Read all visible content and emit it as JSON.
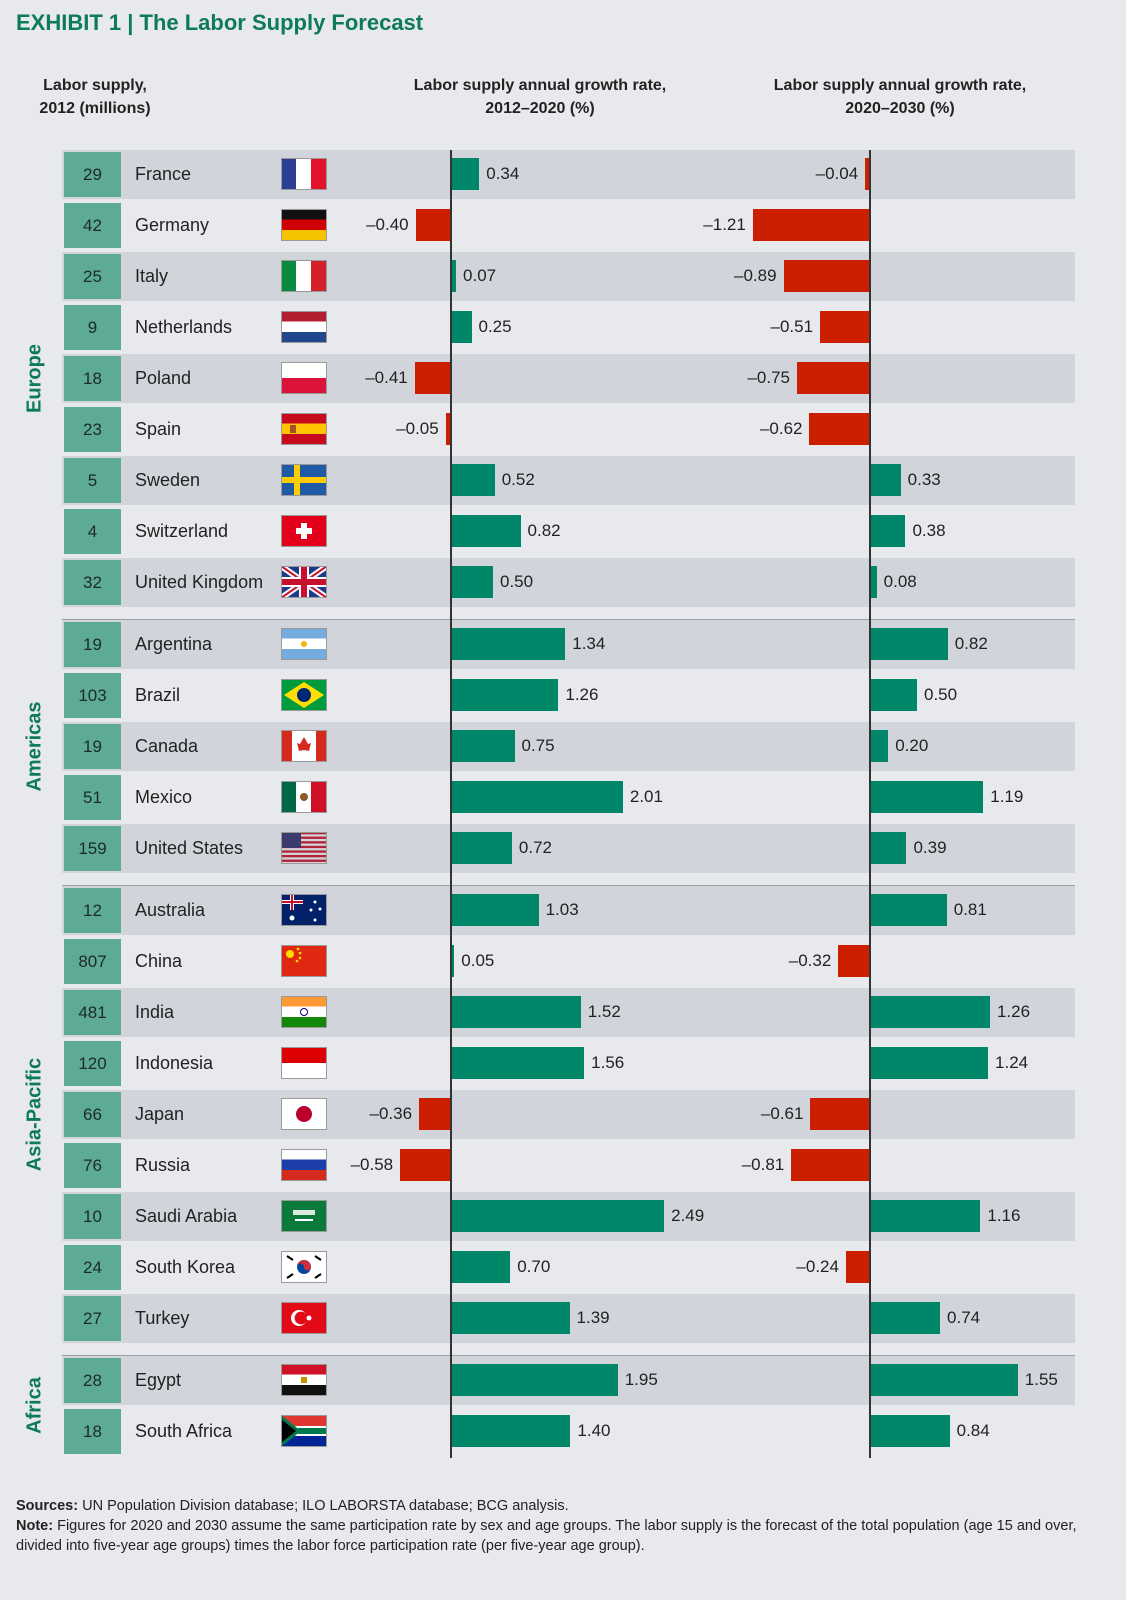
{
  "title": "EXHIBIT 1 | The Labor Supply Forecast",
  "headers": {
    "supply": [
      "Labor supply,",
      "2012 (millions)"
    ],
    "growth1": [
      "Labor supply annual growth rate,",
      "2012–2020 (%)"
    ],
    "growth2": [
      "Labor supply annual growth rate,",
      "2020–2030 (%)"
    ]
  },
  "colors": {
    "positive": "#00876a",
    "negative": "#cc1e00",
    "accent": "#0d7a5b",
    "number_box": "#5daa95"
  },
  "chart_data": {
    "type": "bar",
    "title": "The Labor Supply Forecast",
    "series": [
      {
        "name": "Labor supply, 2012 (millions)",
        "key": "supply"
      },
      {
        "name": "Labor supply annual growth rate, 2012–2020 (%)",
        "key": "g1"
      },
      {
        "name": "Labor supply annual growth rate, 2020–2030 (%)",
        "key": "g2"
      }
    ],
    "groups": [
      {
        "region": "Europe",
        "rows": [
          {
            "country": "France",
            "supply": 29,
            "g1": 0.34,
            "g1_label": "0.34",
            "g2": -0.04,
            "g2_label": "–0.04"
          },
          {
            "country": "Germany",
            "supply": 42,
            "g1": -0.4,
            "g1_label": "–0.40",
            "g2": -1.21,
            "g2_label": "–1.21"
          },
          {
            "country": "Italy",
            "supply": 25,
            "g1": 0.07,
            "g1_label": "0.07",
            "g2": -0.89,
            "g2_label": "–0.89"
          },
          {
            "country": "Netherlands",
            "supply": 9,
            "g1": 0.25,
            "g1_label": "0.25",
            "g2": -0.51,
            "g2_label": "–0.51"
          },
          {
            "country": "Poland",
            "supply": 18,
            "g1": -0.41,
            "g1_label": "–0.41",
            "g2": -0.75,
            "g2_label": "–0.75"
          },
          {
            "country": "Spain",
            "supply": 23,
            "g1": -0.05,
            "g1_label": "–0.05",
            "g2": -0.62,
            "g2_label": "–0.62"
          },
          {
            "country": "Sweden",
            "supply": 5,
            "g1": 0.52,
            "g1_label": "0.52",
            "g2": 0.33,
            "g2_label": "0.33"
          },
          {
            "country": "Switzerland",
            "supply": 4,
            "g1": 0.82,
            "g1_label": "0.82",
            "g2": 0.38,
            "g2_label": "0.38"
          },
          {
            "country": "United Kingdom",
            "supply": 32,
            "g1": 0.5,
            "g1_label": "0.50",
            "g2": 0.08,
            "g2_label": "0.08"
          }
        ]
      },
      {
        "region": "Americas",
        "rows": [
          {
            "country": "Argentina",
            "supply": 19,
            "g1": 1.34,
            "g1_label": "1.34",
            "g2": 0.82,
            "g2_label": "0.82"
          },
          {
            "country": "Brazil",
            "supply": 103,
            "g1": 1.26,
            "g1_label": "1.26",
            "g2": 0.5,
            "g2_label": "0.50"
          },
          {
            "country": "Canada",
            "supply": 19,
            "g1": 0.75,
            "g1_label": "0.75",
            "g2": 0.2,
            "g2_label": "0.20"
          },
          {
            "country": "Mexico",
            "supply": 51,
            "g1": 2.01,
            "g1_label": "2.01",
            "g2": 1.19,
            "g2_label": "1.19"
          },
          {
            "country": "United States",
            "supply": 159,
            "g1": 0.72,
            "g1_label": "0.72",
            "g2": 0.39,
            "g2_label": "0.39"
          }
        ]
      },
      {
        "region": "Asia-Pacific",
        "rows": [
          {
            "country": "Australia",
            "supply": 12,
            "g1": 1.03,
            "g1_label": "1.03",
            "g2": 0.81,
            "g2_label": "0.81"
          },
          {
            "country": "China",
            "supply": 807,
            "g1": 0.05,
            "g1_label": "0.05",
            "g2": -0.32,
            "g2_label": "–0.32"
          },
          {
            "country": "India",
            "supply": 481,
            "g1": 1.52,
            "g1_label": "1.52",
            "g2": 1.26,
            "g2_label": "1.26"
          },
          {
            "country": "Indonesia",
            "supply": 120,
            "g1": 1.56,
            "g1_label": "1.56",
            "g2": 1.24,
            "g2_label": "1.24"
          },
          {
            "country": "Japan",
            "supply": 66,
            "g1": -0.36,
            "g1_label": "–0.36",
            "g2": -0.61,
            "g2_label": "–0.61"
          },
          {
            "country": "Russia",
            "supply": 76,
            "g1": -0.58,
            "g1_label": "–0.58",
            "g2": -0.81,
            "g2_label": "–0.81"
          },
          {
            "country": "Saudi Arabia",
            "supply": 10,
            "g1": 2.49,
            "g1_label": "2.49",
            "g2": 1.16,
            "g2_label": "1.16"
          },
          {
            "country": "South Korea",
            "supply": 24,
            "g1": 0.7,
            "g1_label": "0.70",
            "g2": -0.24,
            "g2_label": "–0.24"
          },
          {
            "country": "Turkey",
            "supply": 27,
            "g1": 1.39,
            "g1_label": "1.39",
            "g2": 0.74,
            "g2_label": "0.74"
          }
        ]
      },
      {
        "region": "Africa",
        "rows": [
          {
            "country": "Egypt",
            "supply": 28,
            "g1": 1.95,
            "g1_label": "1.95",
            "g2": 1.55,
            "g2_label": "1.55"
          },
          {
            "country": "South Africa",
            "supply": 18,
            "g1": 1.4,
            "g1_label": "1.40",
            "g2": 0.84,
            "g2_label": "0.84"
          }
        ]
      }
    ]
  },
  "footer": {
    "sources_label": "Sources:",
    "sources": " UN Population Division database; ILO LABORSTA database; BCG analysis.",
    "note_label": "Note:",
    "note": " Figures for 2020 and 2030 assume the same participation rate by sex and age groups. The labor supply is the forecast of the total population (age 15 and over, divided into five-year age groups) times the labor force participation rate (per five-year age group)."
  }
}
